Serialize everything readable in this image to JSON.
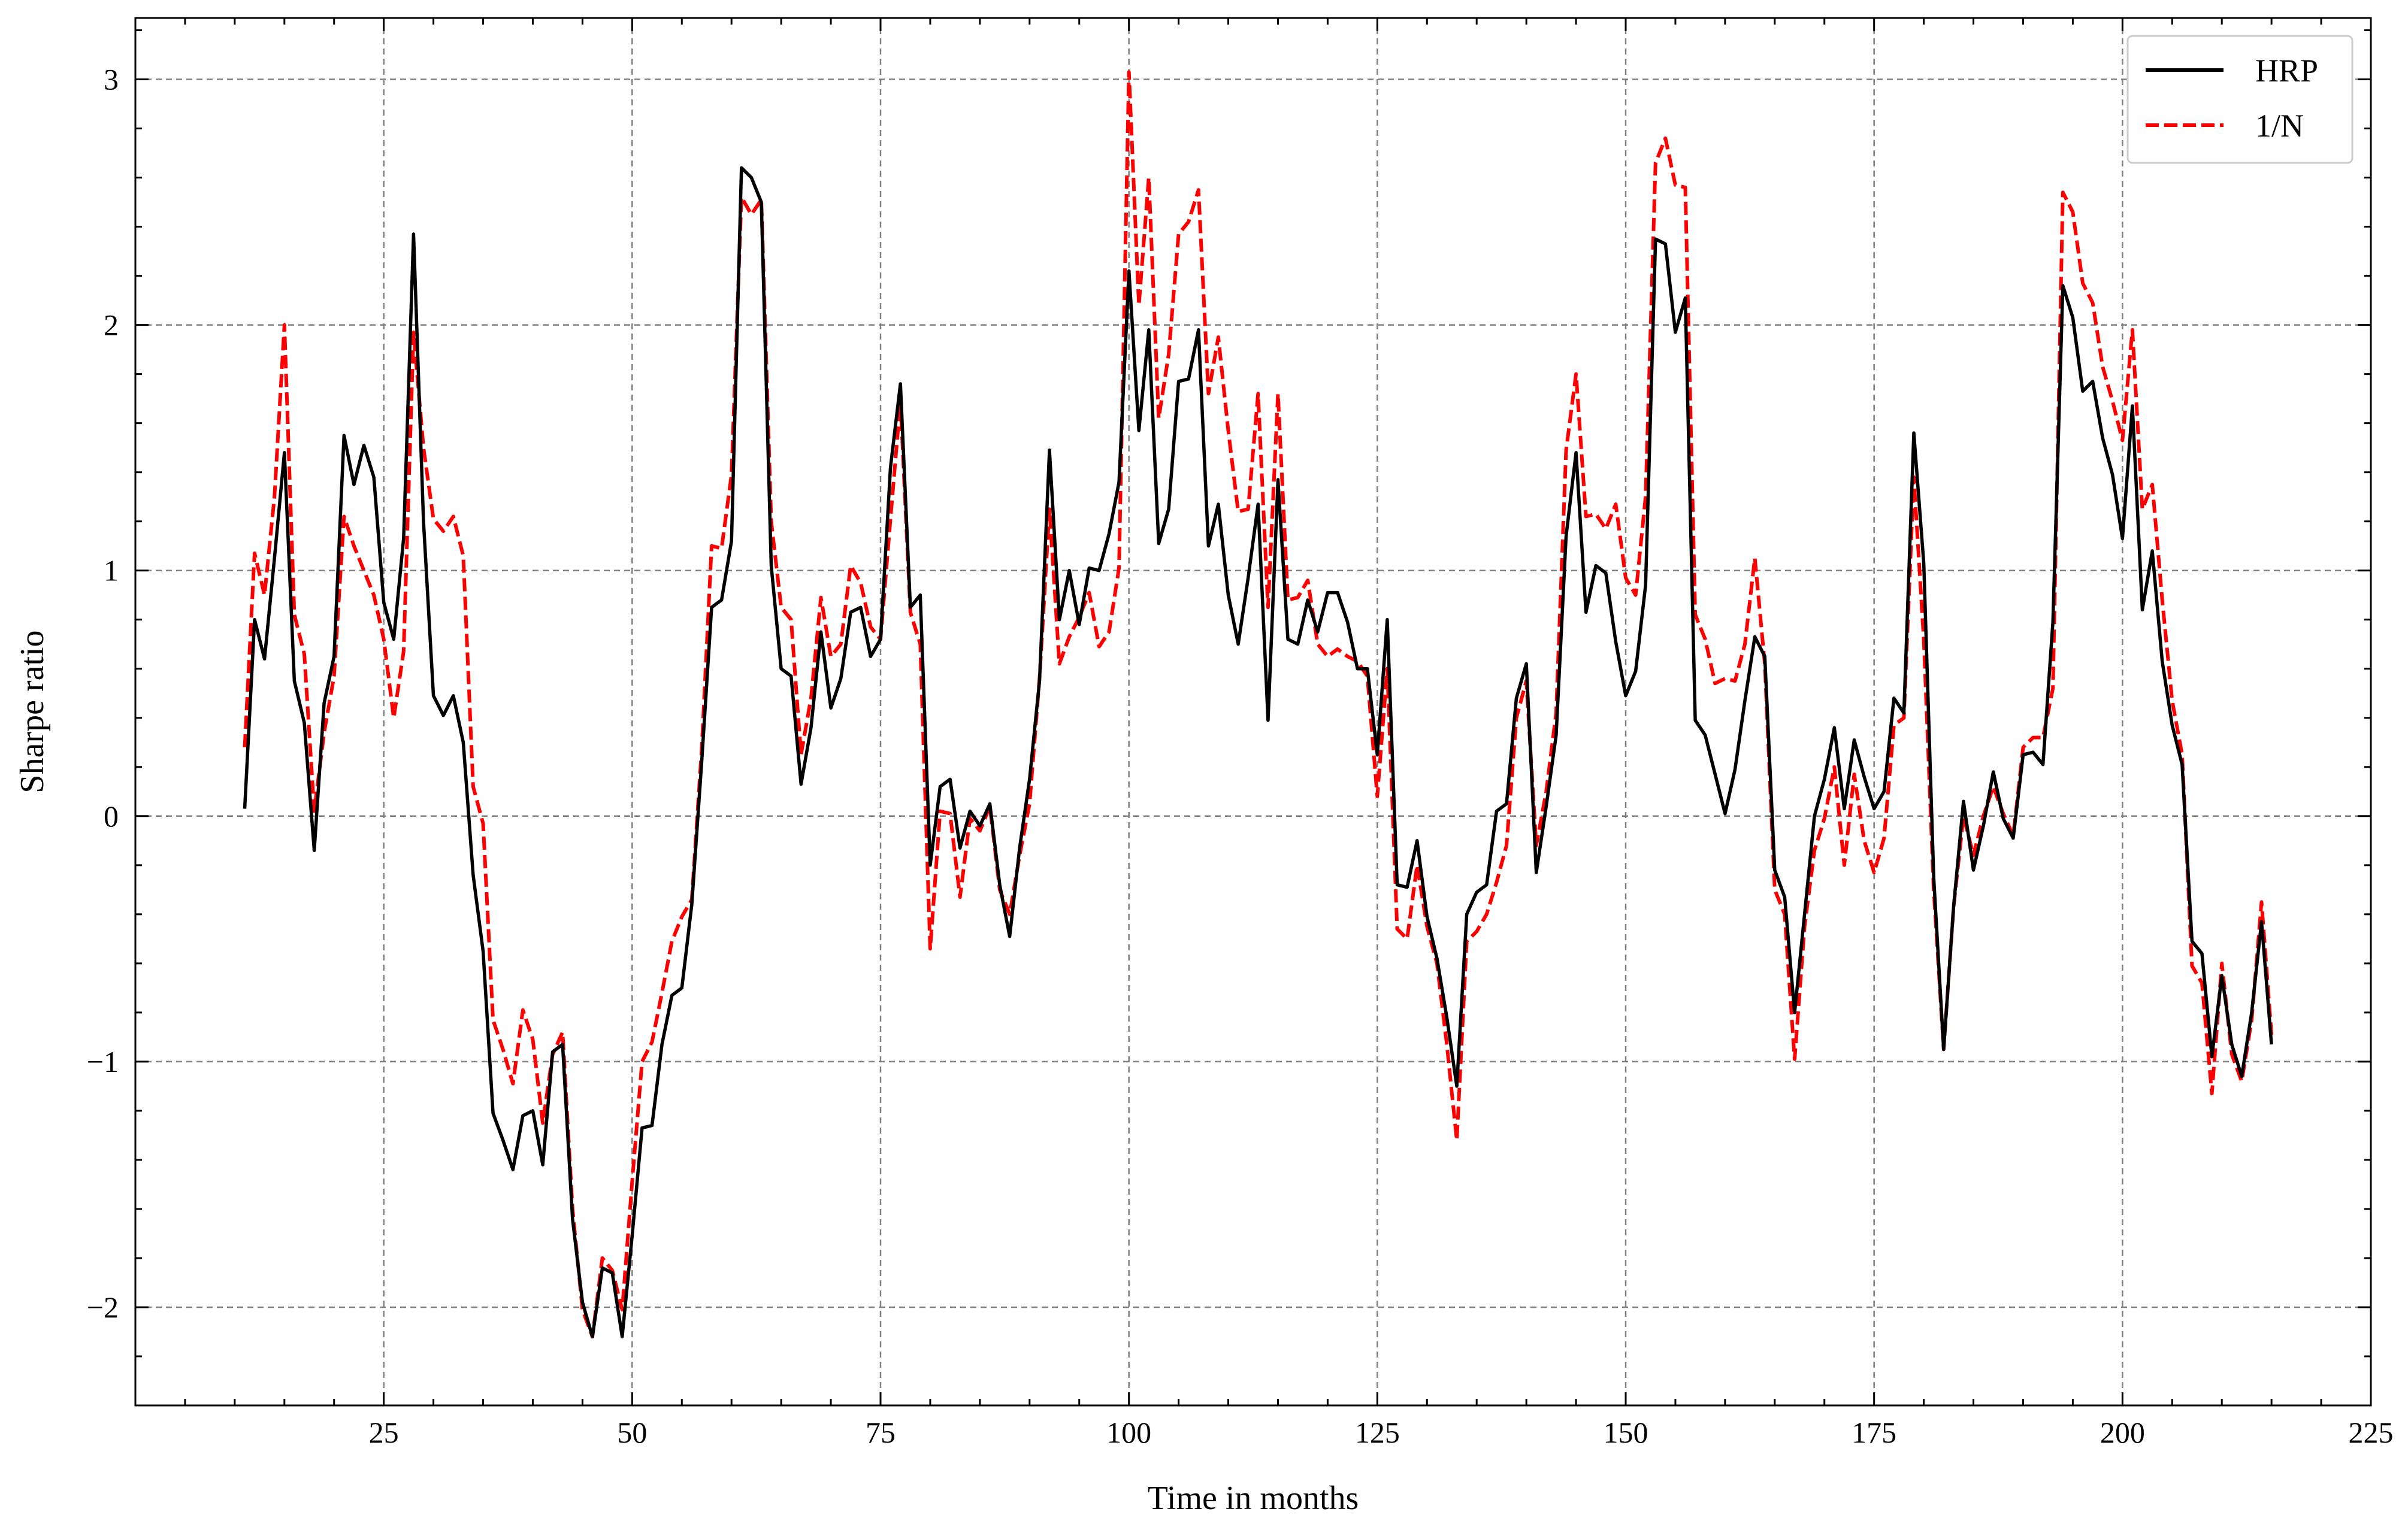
{
  "chart_data": {
    "type": "line",
    "title": "",
    "xlabel": "Time in months",
    "ylabel": "Sharpe ratio",
    "xlim": [
      0,
      225
    ],
    "ylim": [
      -2.4,
      3.25
    ],
    "xticks": [
      25,
      50,
      75,
      100,
      125,
      150,
      175,
      200,
      225
    ],
    "yticks": [
      -2,
      -1,
      0,
      1,
      2,
      3
    ],
    "ytick_labels": [
      "−2",
      "−1",
      "0",
      "1",
      "2",
      "3"
    ],
    "grid": true,
    "legend_position": "top-right",
    "x_start": 11,
    "series": [
      {
        "name": "HRP",
        "color": "#000000",
        "dash": "solid",
        "values": [
          0.03,
          0.8,
          0.64,
          1.05,
          1.48,
          0.55,
          0.38,
          -0.14,
          0.46,
          0.65,
          1.55,
          1.35,
          1.51,
          1.38,
          0.87,
          0.72,
          1.13,
          2.37,
          1.2,
          0.49,
          0.41,
          0.49,
          0.3,
          -0.24,
          -0.55,
          -1.21,
          -1.32,
          -1.44,
          -1.22,
          -1.2,
          -1.42,
          -0.96,
          -0.93,
          -1.64,
          -1.98,
          -2.12,
          -1.84,
          -1.86,
          -2.12,
          -1.71,
          -1.27,
          -1.26,
          -0.93,
          -0.73,
          -0.7,
          -0.36,
          0.22,
          0.85,
          0.88,
          1.12,
          2.64,
          2.6,
          2.5,
          1.02,
          0.6,
          0.57,
          0.13,
          0.36,
          0.75,
          0.44,
          0.56,
          0.83,
          0.85,
          0.65,
          0.72,
          1.42,
          1.76,
          0.85,
          0.9,
          -0.2,
          0.12,
          0.15,
          -0.13,
          0.02,
          -0.04,
          0.05,
          -0.28,
          -0.49,
          -0.13,
          0.15,
          0.55,
          1.49,
          0.8,
          1.0,
          0.78,
          1.01,
          1.0,
          1.15,
          1.36,
          2.22,
          1.57,
          1.98,
          1.11,
          1.25,
          1.77,
          1.78,
          1.98,
          1.1,
          1.27,
          0.9,
          0.7,
          0.97,
          1.27,
          0.39,
          1.37,
          0.72,
          0.7,
          0.88,
          0.75,
          0.91,
          0.91,
          0.79,
          0.6,
          0.6,
          0.25,
          0.8,
          -0.28,
          -0.29,
          -0.1,
          -0.41,
          -0.58,
          -0.82,
          -1.1,
          -0.4,
          -0.31,
          -0.28,
          0.02,
          0.05,
          0.48,
          0.62,
          -0.23,
          0.04,
          0.33,
          1.14,
          1.48,
          0.83,
          1.02,
          0.99,
          0.71,
          0.49,
          0.59,
          0.94,
          2.35,
          2.33,
          1.97,
          2.11,
          0.39,
          0.33,
          0.17,
          0.01,
          0.19,
          0.47,
          0.73,
          0.65,
          -0.22,
          -0.33,
          -0.8,
          -0.4,
          0.0,
          0.15,
          0.36,
          0.03,
          0.31,
          0.16,
          0.03,
          0.1,
          0.48,
          0.42,
          1.56,
          1.03,
          -0.25,
          -0.95,
          -0.37,
          0.06,
          -0.22,
          -0.04,
          0.18,
          -0.01,
          -0.09,
          0.25,
          0.26,
          0.21,
          0.79,
          2.16,
          2.03,
          1.73,
          1.77,
          1.54,
          1.39,
          1.13,
          1.67,
          0.84,
          1.08,
          0.63,
          0.37,
          0.21,
          -0.51,
          -0.56,
          -0.98,
          -0.65,
          -0.93,
          -1.06,
          -0.8,
          -0.43,
          -0.93
        ]
      },
      {
        "name": "1/N",
        "color": "#ff0000",
        "dash": "dashed",
        "values": [
          0.28,
          1.07,
          0.9,
          1.3,
          2.0,
          0.82,
          0.66,
          0.02,
          0.34,
          0.57,
          1.22,
          1.1,
          1.0,
          0.9,
          0.72,
          0.4,
          0.67,
          1.97,
          1.5,
          1.21,
          1.16,
          1.22,
          1.06,
          0.12,
          -0.03,
          -0.83,
          -0.95,
          -1.09,
          -0.79,
          -0.91,
          -1.25,
          -0.97,
          -0.88,
          -1.6,
          -2.01,
          -2.12,
          -1.8,
          -1.85,
          -2.01,
          -1.49,
          -1.0,
          -0.92,
          -0.72,
          -0.51,
          -0.41,
          -0.34,
          0.27,
          1.1,
          1.09,
          1.39,
          2.52,
          2.45,
          2.51,
          1.2,
          0.85,
          0.8,
          0.25,
          0.48,
          0.89,
          0.65,
          0.7,
          1.02,
          0.95,
          0.77,
          0.72,
          1.21,
          1.69,
          0.83,
          0.7,
          -0.54,
          0.02,
          0.01,
          -0.33,
          -0.01,
          -0.06,
          0.04,
          -0.3,
          -0.4,
          -0.16,
          0.05,
          0.56,
          1.25,
          0.62,
          0.73,
          0.81,
          0.91,
          0.69,
          0.75,
          1.01,
          3.03,
          2.08,
          2.6,
          1.62,
          1.88,
          2.37,
          2.42,
          2.55,
          1.72,
          1.95,
          1.57,
          1.24,
          1.25,
          1.72,
          0.85,
          1.72,
          0.88,
          0.89,
          0.96,
          0.7,
          0.65,
          0.68,
          0.65,
          0.63,
          0.57,
          0.08,
          0.6,
          -0.46,
          -0.5,
          -0.2,
          -0.45,
          -0.6,
          -0.93,
          -1.32,
          -0.51,
          -0.47,
          -0.4,
          -0.27,
          -0.12,
          0.4,
          0.55,
          -0.12,
          0.1,
          0.42,
          1.49,
          1.8,
          1.22,
          1.23,
          1.17,
          1.27,
          0.97,
          0.9,
          1.3,
          2.66,
          2.76,
          2.57,
          2.56,
          0.82,
          0.72,
          0.54,
          0.56,
          0.55,
          0.7,
          1.05,
          0.62,
          -0.3,
          -0.4,
          -0.99,
          -0.45,
          -0.14,
          -0.01,
          0.2,
          -0.2,
          0.17,
          -0.1,
          -0.23,
          -0.09,
          0.37,
          0.4,
          1.38,
          0.72,
          -0.3,
          -0.95,
          -0.37,
          0.0,
          -0.16,
          0.0,
          0.12,
          0.01,
          -0.08,
          0.28,
          0.32,
          0.32,
          0.52,
          2.54,
          2.46,
          2.17,
          2.09,
          1.83,
          1.69,
          1.53,
          1.98,
          1.25,
          1.35,
          0.88,
          0.47,
          0.25,
          -0.61,
          -0.68,
          -1.13,
          -0.6,
          -0.97,
          -1.08,
          -0.83,
          -0.35,
          -0.89
        ]
      }
    ]
  }
}
